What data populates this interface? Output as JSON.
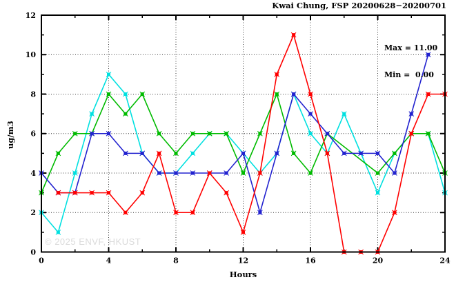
{
  "chart_data": {
    "type": "line",
    "title": "Kwai Chung, FSP 20200628−20200701",
    "xlabel": "Hours",
    "ylabel": "ug/m3",
    "xlim": [
      0,
      24
    ],
    "ylim": [
      0,
      12
    ],
    "x_major_ticks": [
      0,
      4,
      8,
      12,
      16,
      20,
      24
    ],
    "x_minor_ticks": [
      2,
      6,
      10,
      14,
      18,
      22
    ],
    "y_major_ticks": [
      0,
      2,
      4,
      6,
      8,
      10,
      12
    ],
    "y_minor_ticks": [
      1,
      3,
      5,
      7,
      9,
      11
    ],
    "grid": true,
    "legend_position": "top-right-inside",
    "annotation": {
      "max_label": "Max = 11.00",
      "min_label": "Min =  0.00"
    },
    "watermark": "© 2025 ENVF, HKUST",
    "series": [
      {
        "name": "series-cyan",
        "color": "#00e0e0",
        "points": [
          [
            0,
            2
          ],
          [
            1,
            1
          ],
          [
            2,
            4
          ],
          [
            3,
            7
          ],
          [
            4,
            9
          ],
          [
            5,
            8
          ],
          [
            6,
            5
          ],
          [
            7,
            4
          ],
          [
            8,
            4
          ],
          [
            9,
            5
          ],
          [
            10,
            6
          ],
          [
            11,
            6
          ],
          [
            12,
            5
          ],
          [
            13,
            4
          ],
          [
            14,
            5
          ],
          [
            15,
            8
          ],
          [
            16,
            6
          ],
          [
            17,
            5
          ],
          [
            18,
            7
          ],
          [
            19,
            5
          ],
          [
            20,
            3
          ],
          [
            21,
            5
          ],
          [
            22,
            6
          ],
          [
            23,
            6
          ],
          [
            24,
            3
          ]
        ]
      },
      {
        "name": "series-green",
        "color": "#00bb00",
        "points": [
          [
            0,
            3
          ],
          [
            1,
            5
          ],
          [
            2,
            6
          ],
          [
            3,
            6
          ],
          [
            4,
            8
          ],
          [
            5,
            7
          ],
          [
            6,
            8
          ],
          [
            7,
            6
          ],
          [
            8,
            5
          ],
          [
            9,
            6
          ],
          [
            10,
            6
          ],
          [
            11,
            6
          ],
          [
            12,
            4
          ],
          [
            13,
            6
          ],
          [
            14,
            8
          ],
          [
            15,
            5
          ],
          [
            16,
            4
          ],
          [
            17,
            6
          ],
          [
            20,
            4
          ],
          [
            21,
            5
          ],
          [
            22,
            6
          ],
          [
            23,
            6
          ],
          [
            24,
            4
          ]
        ]
      },
      {
        "name": "series-blue",
        "color": "#2222cf",
        "points": [
          [
            0,
            4
          ],
          [
            1,
            3
          ],
          [
            2,
            3
          ],
          [
            3,
            6
          ],
          [
            4,
            6
          ],
          [
            5,
            5
          ],
          [
            6,
            5
          ],
          [
            7,
            4
          ],
          [
            8,
            4
          ],
          [
            9,
            4
          ],
          [
            10,
            4
          ],
          [
            11,
            4
          ],
          [
            12,
            5
          ],
          [
            13,
            2
          ],
          [
            14,
            5
          ],
          [
            15,
            8
          ],
          [
            16,
            7
          ],
          [
            17,
            6
          ],
          [
            18,
            5
          ],
          [
            19,
            5
          ],
          [
            20,
            5
          ],
          [
            21,
            4
          ],
          [
            22,
            7
          ],
          [
            23,
            10
          ]
        ]
      },
      {
        "name": "series-red",
        "color": "#ff0000",
        "points": [
          [
            1,
            3
          ],
          [
            2,
            3
          ],
          [
            3,
            3
          ],
          [
            4,
            3
          ],
          [
            5,
            2
          ],
          [
            6,
            3
          ],
          [
            7,
            5
          ],
          [
            8,
            2
          ],
          [
            9,
            2
          ],
          [
            10,
            4
          ],
          [
            11,
            3
          ],
          [
            12,
            1
          ],
          [
            13,
            4
          ],
          [
            14,
            9
          ],
          [
            15,
            11
          ],
          [
            16,
            8
          ],
          [
            17,
            5
          ],
          [
            18,
            0
          ],
          [
            19,
            0
          ],
          [
            20,
            0
          ],
          [
            21,
            2
          ],
          [
            22,
            6
          ],
          [
            23,
            8
          ],
          [
            24,
            8
          ]
        ]
      }
    ],
    "colors": {
      "border": "#000000",
      "grid": "#3a3a3a",
      "tick_label": "#000000",
      "watermark": "#dadada"
    }
  }
}
